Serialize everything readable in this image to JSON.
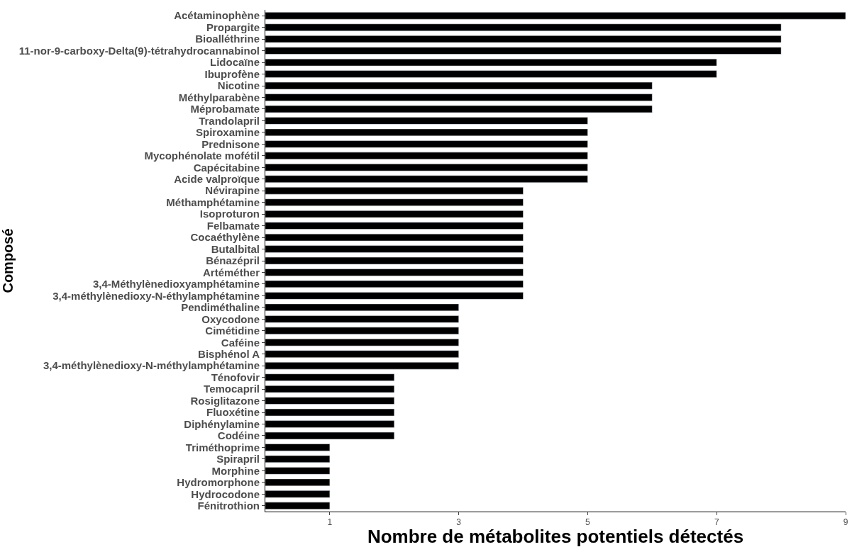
{
  "chart_data": {
    "type": "bar",
    "orientation": "horizontal",
    "xlabel": "Nombre de métabolites potentiels détectés",
    "ylabel": "Composé",
    "categories": [
      "Acétaminophène",
      "Propargite",
      "Bioalléthrine",
      "11-nor-9-carboxy-Delta(9)-tétrahydrocannabinol",
      "Lidocaïne",
      "Ibuprofène",
      "Nicotine",
      "Méthylparabène",
      "Méprobamate",
      "Trandolapril",
      "Spiroxamine",
      "Prednisone",
      "Mycophénolate mofétil",
      "Capécitabine",
      "Acide valproïque",
      "Névirapine",
      "Méthamphétamine",
      "Isoproturon",
      "Felbamate",
      "Cocaéthylène",
      "Butalbital",
      "Bénazépril",
      "Artéméther",
      "3,4-Méthylènedioxyamphétamine",
      "3,4-méthylènedioxy-N-éthylamphétamine",
      "Pendiméthaline",
      "Oxycodone",
      "Cimétidine",
      "Caféine",
      "Bisphénol A",
      "3,4-méthylènedioxy-N-méthylamphétamine",
      "Ténofovir",
      "Temocapril",
      "Rosiglitazone",
      "Fluoxétine",
      "Diphénylamine",
      "Codéine",
      "Triméthoprime",
      "Spirapril",
      "Morphine",
      "Hydromorphone",
      "Hydrocodone",
      "Fénitrothion"
    ],
    "values": [
      9,
      8,
      8,
      8,
      7,
      7,
      6,
      6,
      6,
      5,
      5,
      5,
      5,
      5,
      5,
      4,
      4,
      4,
      4,
      4,
      4,
      4,
      4,
      4,
      4,
      3,
      3,
      3,
      3,
      3,
      3,
      2,
      2,
      2,
      2,
      2,
      2,
      1,
      1,
      1,
      1,
      1,
      1
    ],
    "color": "#000000",
    "xlim": [
      0,
      9
    ],
    "xticks": [
      1,
      3,
      5,
      7,
      9
    ]
  }
}
